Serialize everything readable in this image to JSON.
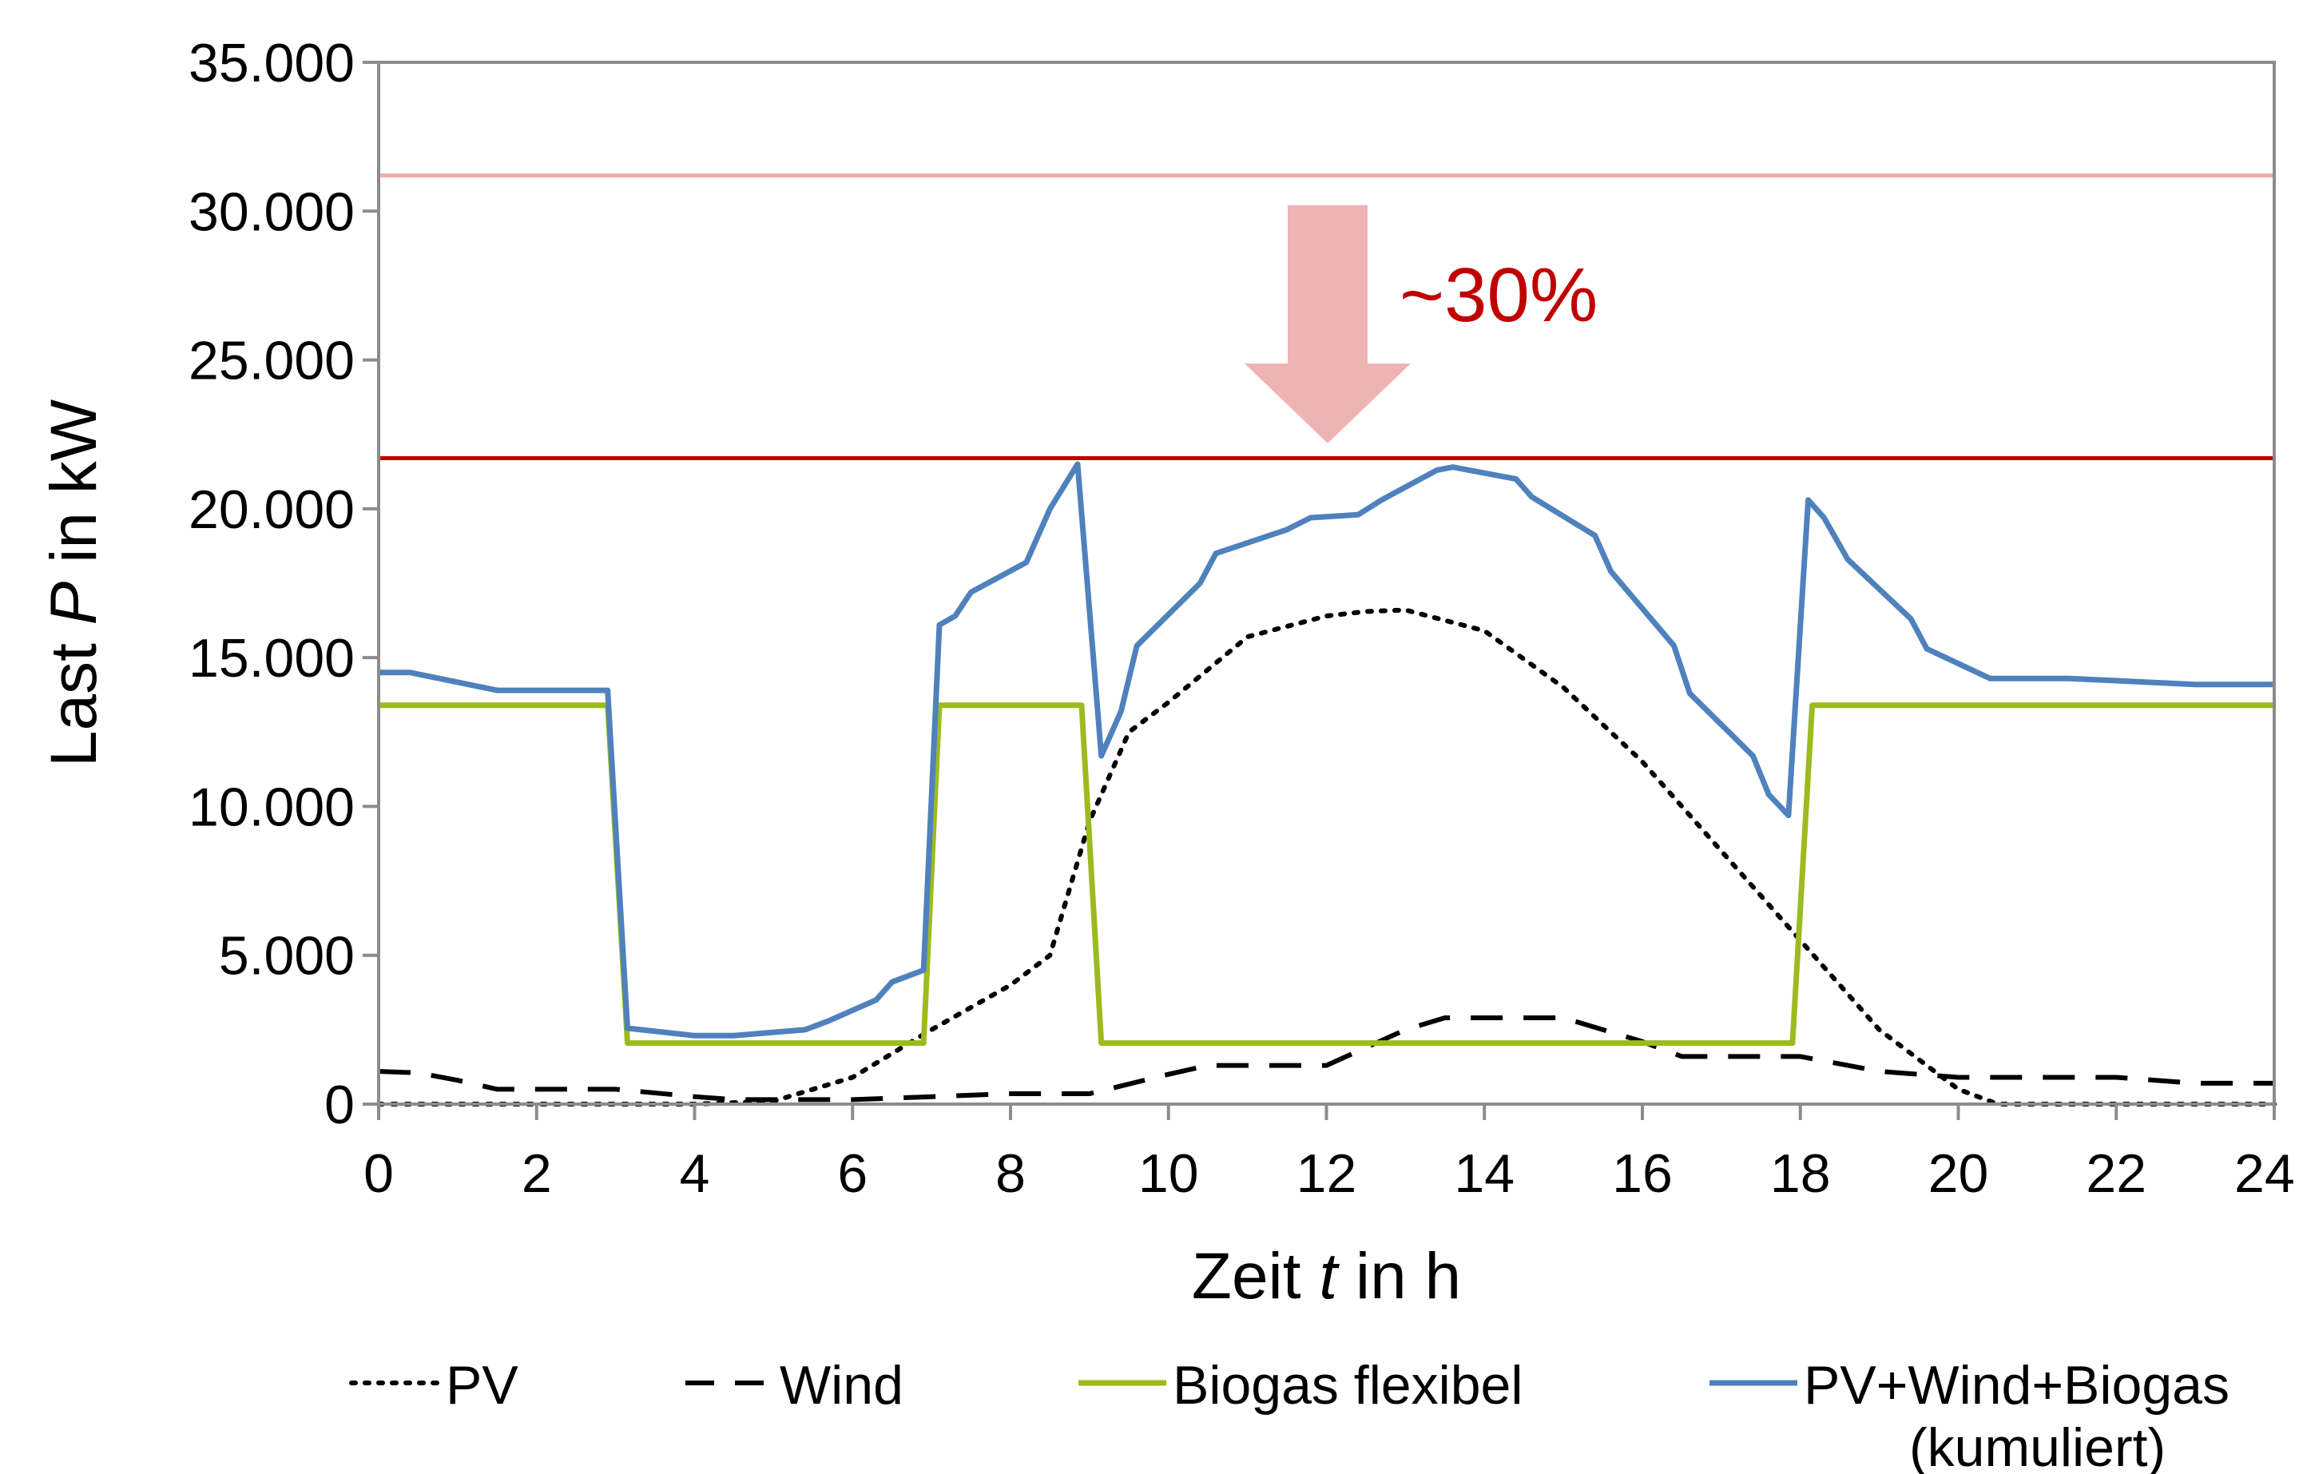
{
  "chart_data": {
    "type": "line",
    "xlabel_prefix": "Zeit ",
    "xlabel_var": "t",
    "xlabel_suffix": " in h",
    "ylabel_prefix": "Last ",
    "ylabel_var": "P",
    "ylabel_suffix": " in kW",
    "xlim": [
      0,
      24
    ],
    "ylim": [
      0,
      35000
    ],
    "x_ticks": [
      0,
      2,
      4,
      6,
      8,
      10,
      12,
      14,
      16,
      18,
      20,
      22,
      24
    ],
    "x_tick_labels": [
      "0",
      "2",
      "4",
      "6",
      "8",
      "10",
      "12",
      "14",
      "16",
      "18",
      "20",
      "22",
      "24"
    ],
    "y_ticks": [
      0,
      5000,
      10000,
      15000,
      20000,
      25000,
      30000,
      35000
    ],
    "y_tick_labels": [
      "0",
      "5.000",
      "10.000",
      "15.000",
      "20.000",
      "25.000",
      "30.000",
      "35.000"
    ],
    "grid": false,
    "legend_position": "bottom",
    "series": [
      {
        "name": "PV",
        "color": "#000000",
        "style": "dotted",
        "x": [
          0,
          2,
          4,
          5,
          6,
          7,
          8,
          8.5,
          9,
          9.5,
          10,
          11,
          12,
          12.5,
          13,
          14,
          15,
          16,
          17,
          18,
          19,
          20,
          20.5,
          22,
          24
        ],
        "y": [
          0,
          0,
          0,
          100,
          900,
          2500,
          4000,
          5000,
          9500,
          12500,
          13500,
          15700,
          16400,
          16550,
          16600,
          15900,
          14000,
          11500,
          8500,
          5500,
          2500,
          500,
          0,
          0,
          0
        ]
      },
      {
        "name": "Wind",
        "color": "#000000",
        "style": "dashed",
        "x": [
          0,
          0.5,
          1,
          1.5,
          2,
          3,
          4,
          4.5,
          5,
          6,
          7,
          8,
          9,
          10,
          10.5,
          11,
          12,
          13,
          13.5,
          14,
          15,
          16,
          16.5,
          17,
          18,
          19,
          20,
          21,
          22,
          23,
          24
        ],
        "y": [
          1100,
          1050,
          800,
          500,
          500,
          500,
          250,
          150,
          150,
          150,
          250,
          350,
          350,
          1000,
          1300,
          1300,
          1300,
          2500,
          2900,
          2900,
          2900,
          2100,
          1600,
          1600,
          1600,
          1100,
          900,
          900,
          900,
          700,
          700
        ]
      },
      {
        "name": "Biogas flexibel",
        "color": "#9bbb1f",
        "style": "solid",
        "x": [
          0,
          2.9,
          3.15,
          6.9,
          7.1,
          8.9,
          9.15,
          17.9,
          18.15,
          24
        ],
        "y": [
          13400,
          13400,
          2050,
          2050,
          13400,
          13400,
          2050,
          2050,
          13400,
          13400
        ]
      },
      {
        "name": "PV+Wind+Biogas",
        "name_line2": "(kumuliert)",
        "color": "#4f81bd",
        "style": "solid",
        "x": [
          0,
          0.4,
          1.5,
          2.9,
          3.15,
          4,
          4.5,
          5.4,
          5.7,
          6.3,
          6.5,
          6.9,
          7.1,
          7.3,
          7.5,
          8.2,
          8.5,
          8.85,
          9.15,
          9.4,
          9.6,
          10.4,
          10.6,
          11.5,
          11.8,
          12.4,
          12.7,
          13.4,
          13.6,
          14.4,
          14.6,
          15.4,
          15.6,
          16.4,
          16.6,
          17.4,
          17.6,
          17.85,
          18.1,
          18.3,
          18.6,
          19.4,
          19.6,
          20.4,
          21.4,
          23,
          24
        ],
        "y": [
          14500,
          14500,
          13900,
          13900,
          2550,
          2300,
          2300,
          2500,
          2800,
          3500,
          4100,
          4500,
          16100,
          16400,
          17200,
          18200,
          20000,
          21500,
          11700,
          13200,
          15400,
          17500,
          18500,
          19300,
          19700,
          19800,
          20300,
          21300,
          21400,
          21000,
          20400,
          19100,
          17900,
          15400,
          13800,
          11700,
          10400,
          9700,
          20300,
          19700,
          18300,
          16300,
          15300,
          14300,
          14300,
          14100,
          14100
        ]
      }
    ],
    "reference_lines": [
      {
        "value": 31200,
        "color": "#f2a9a9"
      },
      {
        "value": 21700,
        "color": "#c00000"
      }
    ],
    "annotation": {
      "text": "~30%",
      "arrow_from_value": 30200,
      "arrow_to_value": 22200,
      "arrow_color": "#eeb4b4",
      "text_color": "#c00000"
    }
  }
}
